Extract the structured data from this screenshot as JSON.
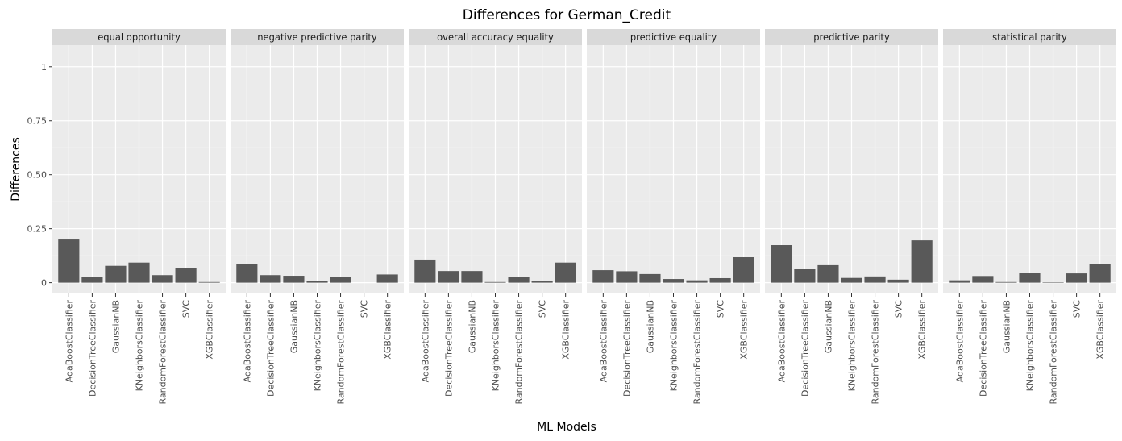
{
  "chart_data": {
    "type": "bar",
    "title": "Differences for German_Credit",
    "xlabel": "ML Models",
    "ylabel": "Differences",
    "ylim": [
      -0.05,
      1.1
    ],
    "yticks": [
      0,
      0.25,
      0.5,
      0.75,
      1
    ],
    "ytick_labels": [
      "0",
      "0.25",
      "0.50",
      "0.75",
      "1"
    ],
    "grid": true,
    "categories": [
      "AdaBoostClassifier",
      "DecisionTreeClassifier",
      "GaussianNB",
      "KNeighborsClassifier",
      "RandomForestClassifier",
      "SVC",
      "XGBClassifier"
    ],
    "facets": [
      {
        "name": "equal opportunity",
        "values": [
          0.2,
          0.028,
          0.078,
          0.093,
          0.035,
          0.068,
          0.003
        ]
      },
      {
        "name": "negative predictive parity",
        "values": [
          0.088,
          0.035,
          0.032,
          0.007,
          0.028,
          0.0,
          0.038
        ]
      },
      {
        "name": "overall accuracy equality",
        "values": [
          0.107,
          0.054,
          0.054,
          0.003,
          0.028,
          0.006,
          0.093
        ]
      },
      {
        "name": "predictive equality",
        "values": [
          0.058,
          0.053,
          0.04,
          0.017,
          0.011,
          0.021,
          0.118
        ]
      },
      {
        "name": "predictive parity",
        "values": [
          0.174,
          0.062,
          0.081,
          0.022,
          0.029,
          0.014,
          0.196
        ]
      },
      {
        "name": "statistical parity",
        "values": [
          0.011,
          0.031,
          0.003,
          0.046,
          0.002,
          0.043,
          0.085
        ]
      }
    ],
    "colors": {
      "bar": "#595959",
      "panel": "#ebebeb",
      "strip": "#d9d9d9",
      "grid": "#ffffff"
    }
  }
}
